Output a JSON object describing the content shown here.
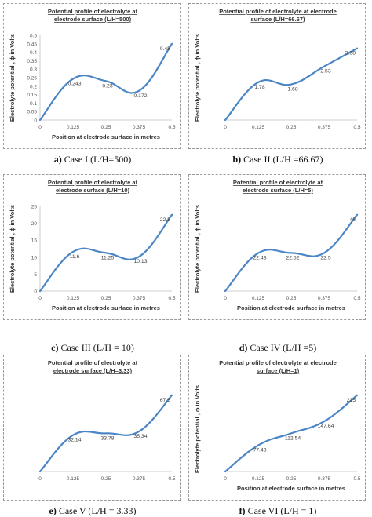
{
  "figure": {
    "panels": [
      {
        "caption_letter": "a)",
        "caption_text": "Case I (L/H=500)",
        "chart_data": {
          "type": "line",
          "title_line1": "Potential profile of electrolyte at",
          "title_line2": "electrode surface (L/H=500)",
          "xlabel": "Position at electrode surface in metres",
          "ylabel": "Electrolyte potential , ϕ in Volts",
          "x": [
            0,
            0.125,
            0.25,
            0.375,
            0.5
          ],
          "y": [
            0,
            0.243,
            0.23,
            0.172,
            0.45
          ],
          "point_labels": [
            "",
            "0.243",
            "0.23",
            "0.172",
            "0.45"
          ],
          "xticks": [
            "0",
            "0.125",
            "0.25",
            "0.375",
            "0.5"
          ],
          "yticks": [
            "0",
            "0.05",
            "0.1",
            "0.15",
            "0.2",
            "0.25",
            "0.3",
            "0.35",
            "0.4",
            "0.45",
            "0.5"
          ],
          "ylim": [
            0,
            0.5
          ],
          "y_axis_shown": true,
          "grid": false,
          "color": "#4a86c5"
        }
      },
      {
        "caption_letter": "b)",
        "caption_text": "Case II (L/H =66.67)",
        "chart_data": {
          "type": "line",
          "title_line1": "Potential profile of electrolyte at electrode",
          "title_line2": "surface (L/H=66.67)",
          "xlabel": "",
          "ylabel": "Electrolyte potential , ϕ in Volts",
          "x": [
            0,
            0.125,
            0.25,
            0.375,
            0.5
          ],
          "y": [
            0,
            1.78,
            1.68,
            2.53,
            3.38
          ],
          "point_labels": [
            "",
            "1.78",
            "1.68",
            "2.53",
            "3.38"
          ],
          "xticks": [
            "0",
            "0.125",
            "0.25",
            "0.375",
            "0.5"
          ],
          "yticks": [],
          "ylim": [
            0,
            4
          ],
          "y_axis_shown": false,
          "grid": false,
          "color": "#4a86c5"
        }
      },
      {
        "caption_letter": "c)",
        "caption_text": "Case III (L/H = 10)",
        "chart_data": {
          "type": "line",
          "title_line1": "Potential profile of electrolyte at",
          "title_line2": "electrode surface (L/H=10)",
          "xlabel": "Position at electrode surface in metres",
          "ylabel": "Electrolyte potential , ϕ in Volts",
          "x": [
            0,
            0.125,
            0.25,
            0.375,
            0.5
          ],
          "y": [
            0,
            11.6,
            11.25,
            10.13,
            22.5
          ],
          "point_labels": [
            "",
            "11.6",
            "11.25",
            "10.13",
            "22.5"
          ],
          "xticks": [
            "0",
            "0.125",
            "0.25",
            "0.375",
            "0.5"
          ],
          "yticks": [
            "0",
            "5",
            "10",
            "15",
            "20",
            "25"
          ],
          "ylim": [
            0,
            25
          ],
          "y_axis_shown": true,
          "grid": false,
          "color": "#4a86c5"
        }
      },
      {
        "caption_letter": "d)",
        "caption_text": "Case IV (L/H =5)",
        "chart_data": {
          "type": "line",
          "title_line1": "Potential profile of electrolyte at",
          "title_line2": "electrode surface (L/H=5)",
          "xlabel": "Position at electrode surface in metres",
          "ylabel": "Electrolyte potential , ϕ in Volts",
          "x": [
            0,
            0.125,
            0.25,
            0.375,
            0.5
          ],
          "y": [
            0,
            22.43,
            22.52,
            22.5,
            45
          ],
          "point_labels": [
            "",
            "22.43",
            "22.52",
            "22.5",
            "45"
          ],
          "xticks": [
            "0",
            "0.125",
            "0.25",
            "0.375",
            "0.5"
          ],
          "yticks": [],
          "ylim": [
            0,
            50
          ],
          "y_axis_shown": false,
          "grid": false,
          "color": "#4a86c5"
        }
      },
      {
        "caption_letter": "e)",
        "caption_text": "Case V (L/H = 3.33)",
        "chart_data": {
          "type": "line",
          "title_line1": "Potential profile of electrolyte at",
          "title_line2": "electrode surface (L/H=3.33)",
          "xlabel": "",
          "ylabel": "",
          "x": [
            0,
            0.125,
            0.25,
            0.375,
            0.5
          ],
          "y": [
            0,
            32.14,
            33.78,
            35.34,
            67.5
          ],
          "point_labels": [
            "",
            "32.14",
            "33.78",
            "35.34",
            "67.5"
          ],
          "xticks": [
            "0",
            "0.125",
            "0.25",
            "0.375",
            "0.5"
          ],
          "yticks": [],
          "ylim": [
            0,
            75
          ],
          "y_axis_shown": false,
          "grid": false,
          "color": "#4a86c5"
        }
      },
      {
        "caption_letter": "f)",
        "caption_text": "Case VI (L/H = 1)",
        "chart_data": {
          "type": "line",
          "title_line1": "Potential profile of electrolyte at electrode",
          "title_line2": "surface (L/H=1)",
          "xlabel": "Position at electrode surface in metres",
          "ylabel": "Electrolyte potential , ϕ in Volts",
          "x": [
            0,
            0.125,
            0.25,
            0.375,
            0.5
          ],
          "y": [
            0,
            77.43,
            112.54,
            147.64,
            225
          ],
          "point_labels": [
            "",
            "77.43",
            "112.54",
            "147.64",
            "225"
          ],
          "xticks": [
            "0",
            "0.125",
            "0.25",
            "0.375",
            "0.5"
          ],
          "yticks": [],
          "ylim": [
            0,
            250
          ],
          "y_axis_shown": false,
          "grid": false,
          "color": "#4a86c5"
        }
      }
    ]
  }
}
